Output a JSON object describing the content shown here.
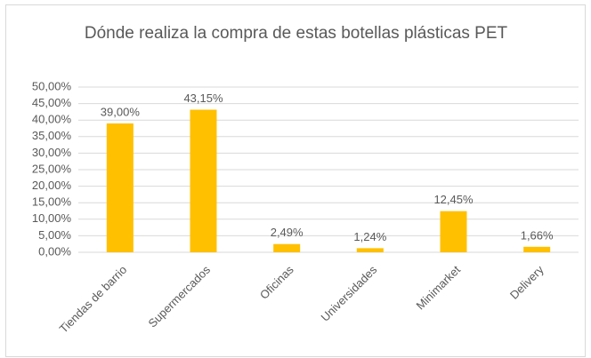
{
  "chart_data": {
    "type": "bar",
    "title": "Dónde realiza la compra de estas botellas plásticas PET",
    "categories": [
      "Tiendas de barrio",
      "Supermercados",
      "Oficinas",
      "Universidades",
      "Minimarket",
      "Delivery"
    ],
    "values": [
      39.0,
      43.15,
      2.49,
      1.24,
      12.45,
      1.66
    ],
    "value_labels": [
      "39,00%",
      "43,15%",
      "2,49%",
      "1,24%",
      "12,45%",
      "1,66%"
    ],
    "color": "#ffc000",
    "ylim": [
      0,
      50
    ],
    "yticks": [
      {
        "value": 0,
        "label": "0,00%"
      },
      {
        "value": 5,
        "label": "5,00%"
      },
      {
        "value": 10,
        "label": "10,00%"
      },
      {
        "value": 15,
        "label": "15,00%"
      },
      {
        "value": 20,
        "label": "20,00%"
      },
      {
        "value": 25,
        "label": "25,00%"
      },
      {
        "value": 30,
        "label": "30,00%"
      },
      {
        "value": 35,
        "label": "35,00%"
      },
      {
        "value": 40,
        "label": "40,00%"
      },
      {
        "value": 45,
        "label": "45,00%"
      },
      {
        "value": 50,
        "label": "50,00%"
      }
    ],
    "grid": true
  }
}
